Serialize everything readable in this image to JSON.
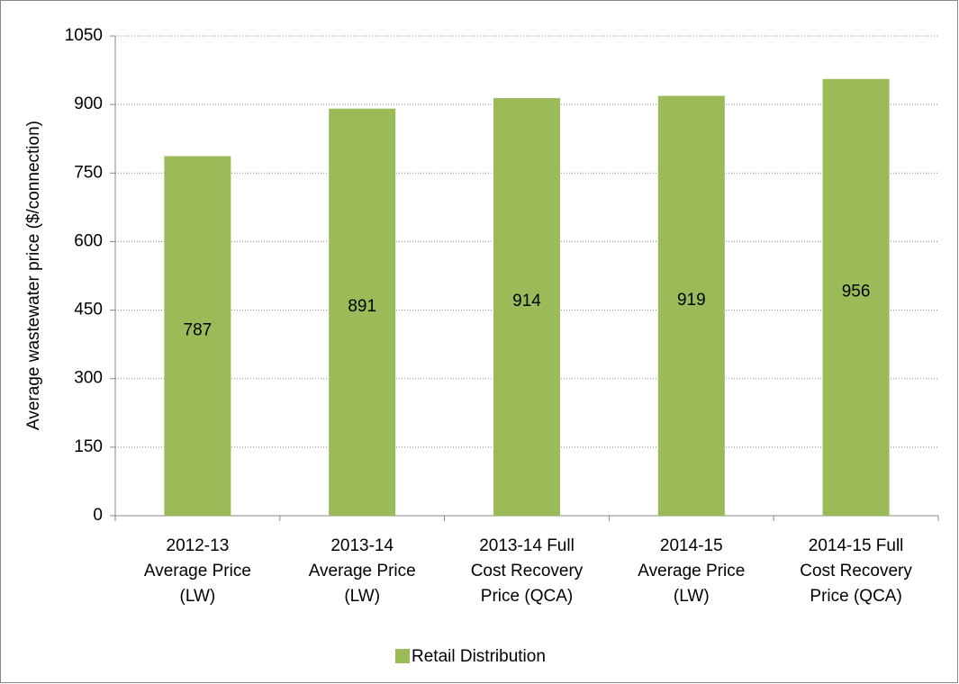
{
  "chart_data": {
    "type": "bar",
    "y_label": "Average wastewater price ($/connection)",
    "categories": [
      [
        "2012-13",
        "Average Price",
        "(LW)"
      ],
      [
        "2013-14",
        "Average Price",
        "(LW)"
      ],
      [
        "2013-14 Full",
        "Cost Recovery",
        "Price (QCA)"
      ],
      [
        "2014-15",
        "Average Price",
        "(LW)"
      ],
      [
        "2014-15 Full",
        "Cost Recovery",
        "Price (QCA)"
      ]
    ],
    "series": [
      {
        "name": "Retail Distribution",
        "color": "#9bbb59",
        "values": [
          787,
          891,
          914,
          919,
          956
        ]
      }
    ],
    "ylim": [
      0,
      1050
    ],
    "yticks": [
      0,
      150,
      300,
      450,
      600,
      750,
      900,
      1050
    ],
    "grid": true,
    "legend": "bottom"
  }
}
